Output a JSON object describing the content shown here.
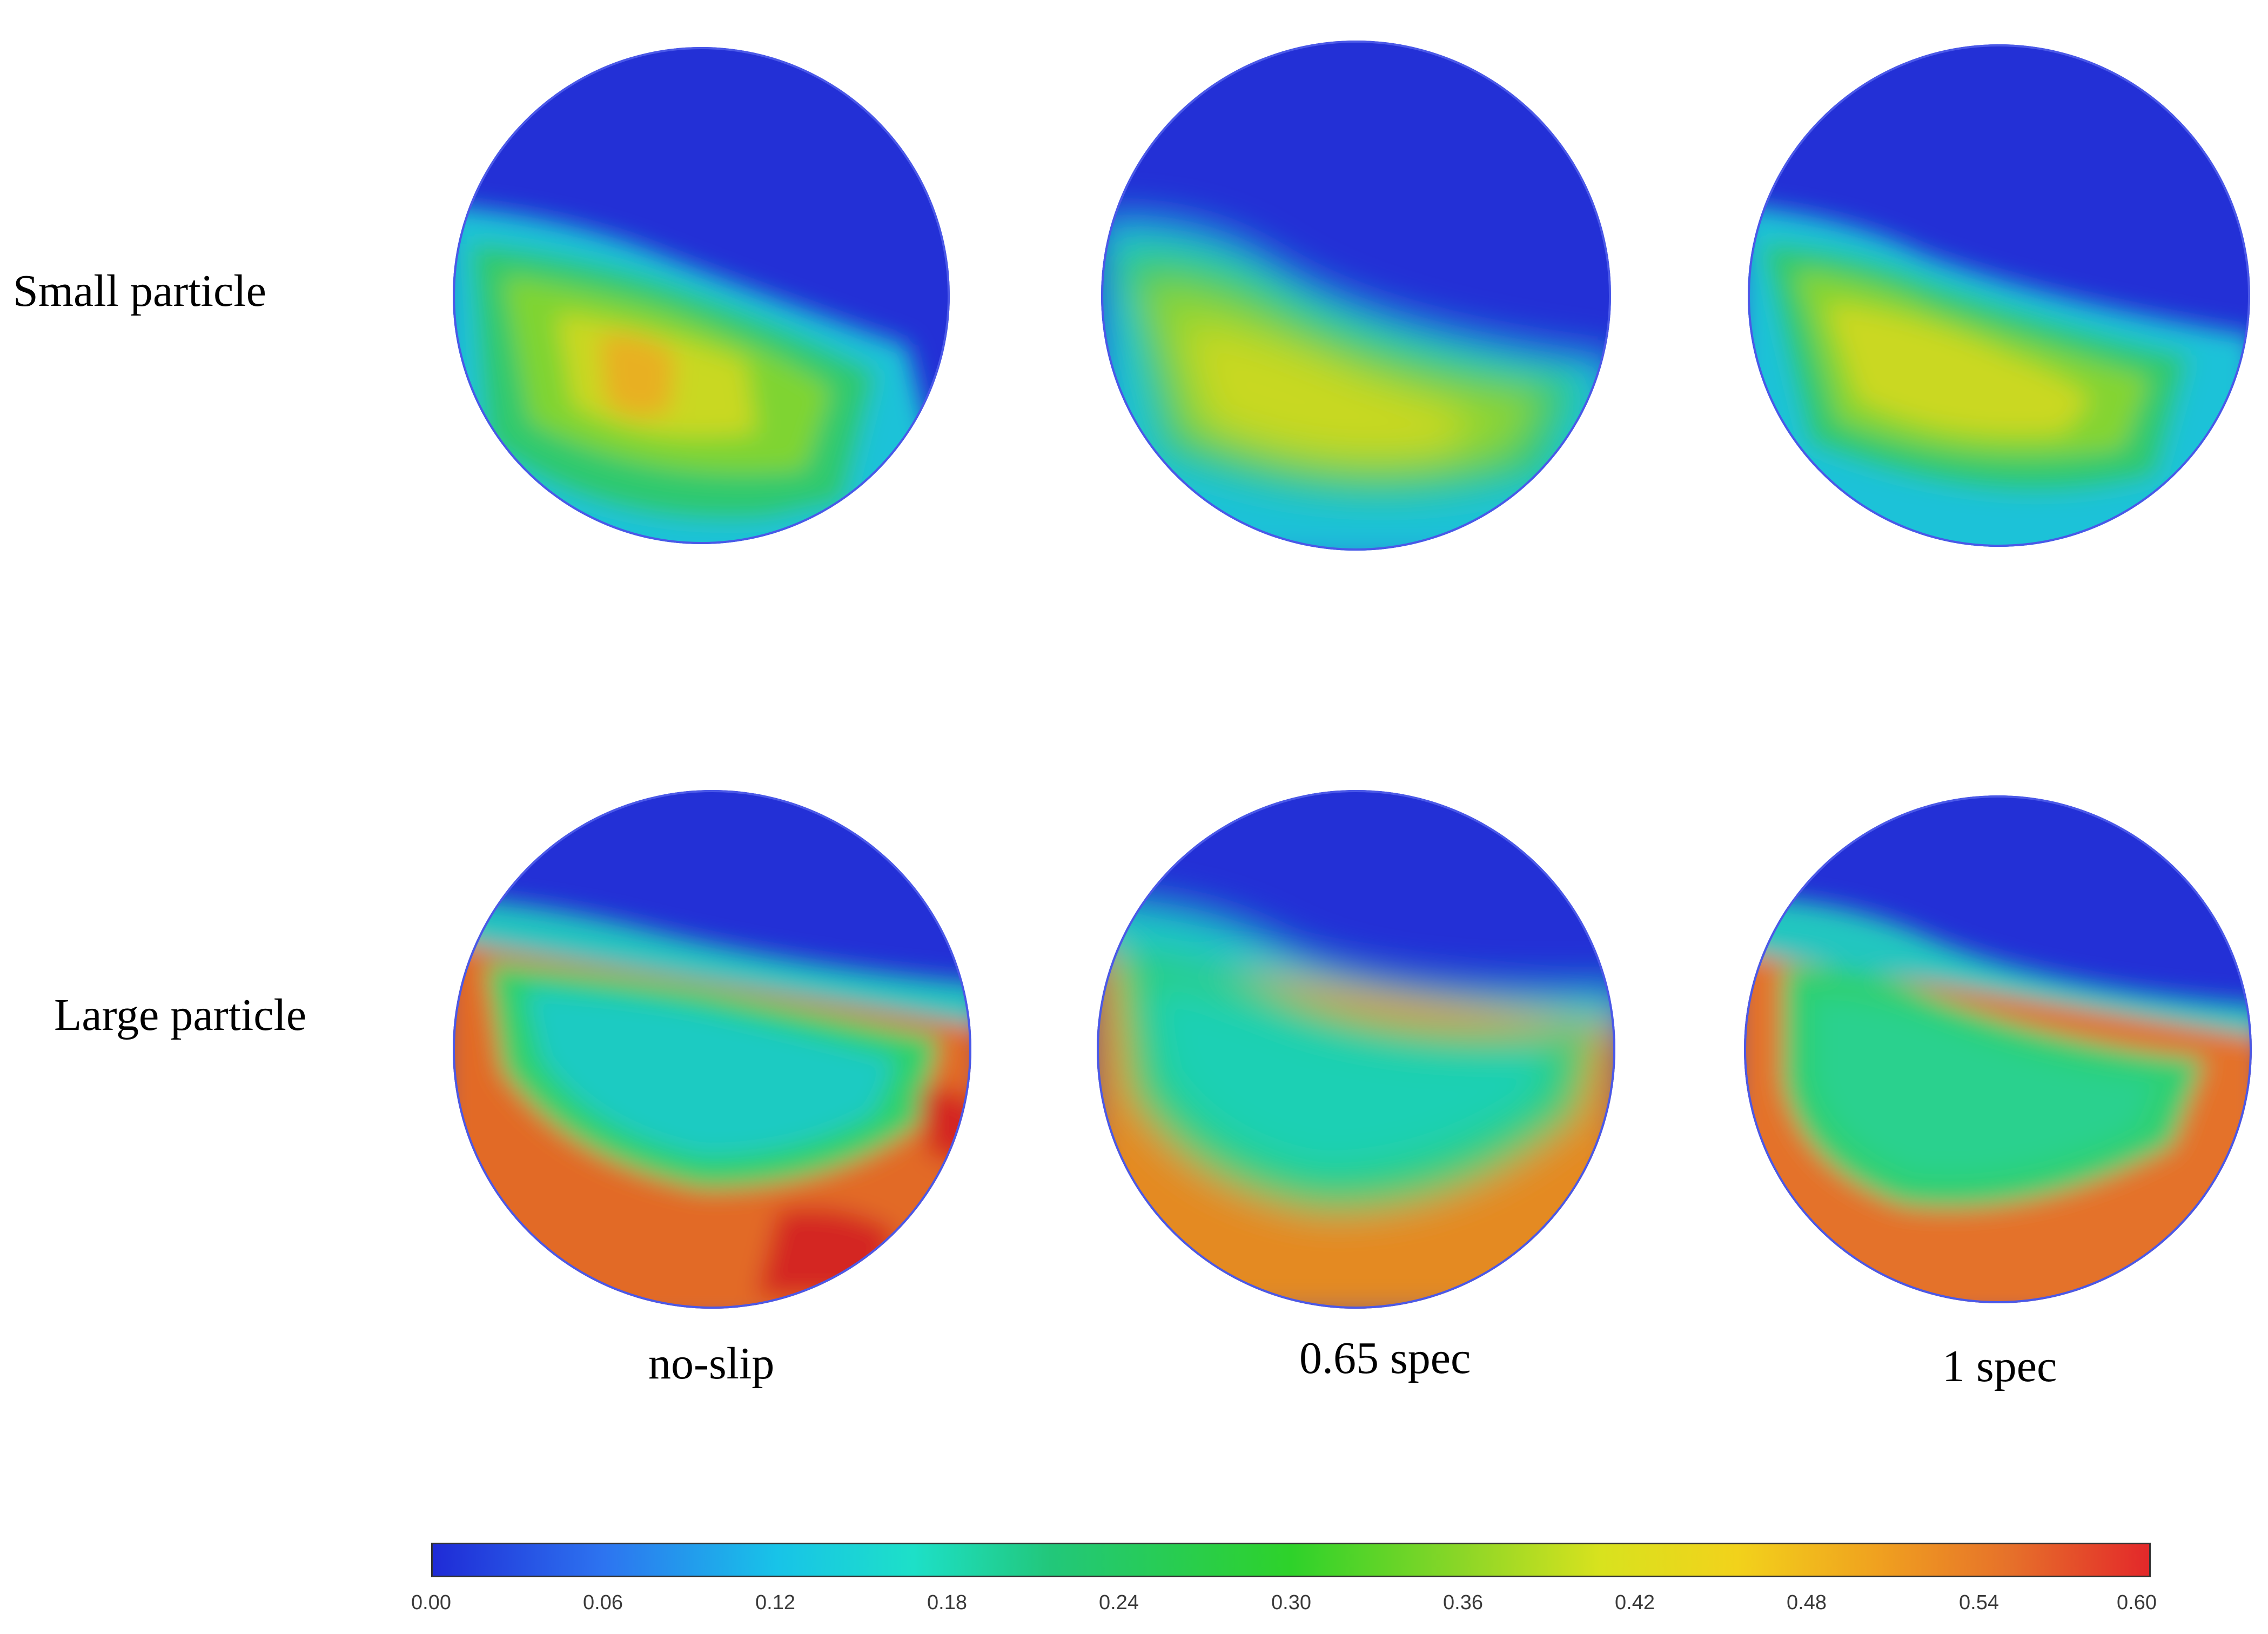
{
  "rows": [
    {
      "label": "Small particle"
    },
    {
      "label": "Large particle"
    }
  ],
  "columns": [
    {
      "label": "no-slip"
    },
    {
      "label": "0.65 spec"
    },
    {
      "label": "1 spec"
    }
  ],
  "colorbar": {
    "ticks": [
      "0.00",
      "0.06",
      "0.12",
      "0.18",
      "0.24",
      "0.30",
      "0.36",
      "0.42",
      "0.48",
      "0.54",
      "0.60"
    ],
    "range": [
      0.0,
      0.6
    ],
    "colors": [
      "#1f2bd6",
      "#18c3e8",
      "#2ed22a",
      "#f2d21b",
      "#e3282a"
    ]
  }
}
